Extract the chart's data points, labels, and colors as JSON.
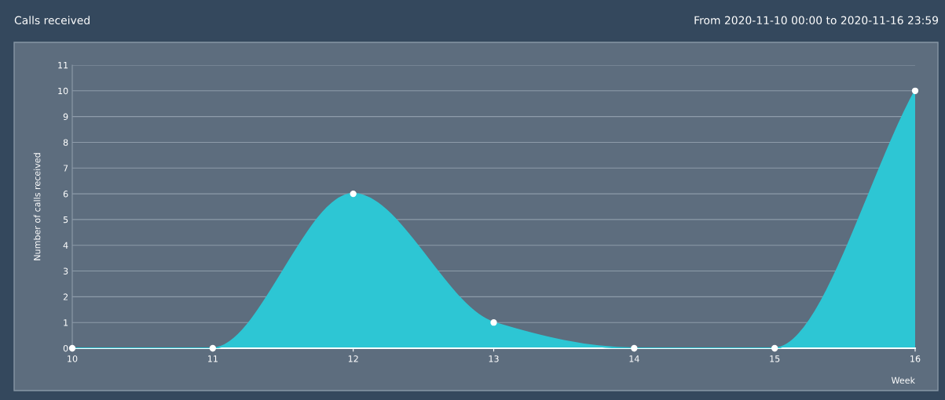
{
  "chart_data": {
    "type": "area",
    "title": "Calls received",
    "subtitle": "From 2020-11-10 00:00 to 2020-11-16 23:59",
    "xlabel": "Week",
    "ylabel": "Number of calls received",
    "x": [
      10,
      11,
      12,
      13,
      14,
      15,
      16
    ],
    "series": [
      {
        "color": "#2dc6d4",
        "values": [
          0,
          0,
          6,
          1,
          0,
          0,
          10
        ]
      }
    ],
    "xlim": [
      10,
      16
    ],
    "xticks": [
      10,
      11,
      12,
      13,
      14,
      15,
      16
    ],
    "ylim": [
      0,
      11
    ],
    "yticks": [
      0,
      1,
      2,
      3,
      4,
      5,
      6,
      7,
      8,
      9,
      10,
      11
    ],
    "grid": "y",
    "marker": "circle",
    "legend": false
  }
}
